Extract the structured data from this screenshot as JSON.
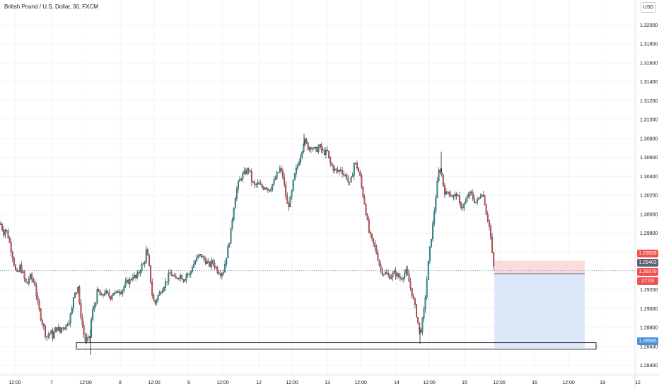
{
  "header": {
    "title": "British Pound / U.S. Dollar, 30, FXCM",
    "currency": "USD"
  },
  "price_tags": {
    "target_price": "1.29509",
    "last_price": "1.29403",
    "entry_price": "1.29370",
    "countdown": "27:03",
    "stop_price": "1.28585"
  },
  "colors": {
    "up": "#26a69a",
    "down": "#ef5350",
    "last": "#5b6170",
    "stop": "#4a90d9",
    "profit_zone": "#f8d7d7",
    "loss_zone": "#d9e6fa"
  },
  "chart_data": {
    "type": "candlestick",
    "title": "British Pound / U.S. Dollar, 30, FXCM",
    "ylim": [
      1.283,
      1.3225
    ],
    "y_ticks": [
      "1.32000",
      "1.31800",
      "1.31600",
      "1.31400",
      "1.31200",
      "1.31000",
      "1.30800",
      "1.30600",
      "1.30400",
      "1.30200",
      "1.30000",
      "1.29800",
      "1.29600",
      "1.29400",
      "1.29200",
      "1.29000",
      "1.28800",
      "1.28600",
      "1.28400"
    ],
    "x_ticks": [
      "12:00",
      "7",
      "12:00",
      "8",
      "12:00",
      "9",
      "12:00",
      "12",
      "12:00",
      "13",
      "12:00",
      "14",
      "12:00",
      "15",
      "12:00",
      "16",
      "12:00",
      "19",
      "12"
    ],
    "price_path": [
      [
        0,
        1.299
      ],
      [
        2,
        1.2988
      ],
      [
        5,
        1.298
      ],
      [
        8,
        1.2985
      ],
      [
        12,
        1.2975
      ],
      [
        15,
        1.2965
      ],
      [
        18,
        1.2955
      ],
      [
        22,
        1.294
      ],
      [
        25,
        1.2935
      ],
      [
        28,
        1.2945
      ],
      [
        32,
        1.2938
      ],
      [
        35,
        1.293
      ],
      [
        38,
        1.2925
      ],
      [
        42,
        1.2935
      ],
      [
        46,
        1.293
      ],
      [
        50,
        1.2925
      ],
      [
        52,
        1.291
      ],
      [
        55,
        1.29
      ],
      [
        58,
        1.289
      ],
      [
        62,
        1.288
      ],
      [
        65,
        1.287
      ],
      [
        68,
        1.2872
      ],
      [
        72,
        1.2875
      ],
      [
        75,
        1.287
      ],
      [
        78,
        1.2878
      ],
      [
        82,
        1.288
      ],
      [
        85,
        1.2875
      ],
      [
        88,
        1.2882
      ],
      [
        92,
        1.288
      ],
      [
        95,
        1.2885
      ],
      [
        98,
        1.2888
      ],
      [
        102,
        1.29
      ],
      [
        105,
        1.292
      ],
      [
        108,
        1.2918
      ],
      [
        110,
        1.2925
      ],
      [
        112,
        1.2905
      ],
      [
        115,
        1.289
      ],
      [
        118,
        1.2875
      ],
      [
        121,
        1.2865
      ],
      [
        124,
        1.287
      ],
      [
        126,
        1.2862
      ],
      [
        128,
        1.288
      ],
      [
        130,
        1.2895
      ],
      [
        132,
        1.29
      ],
      [
        134,
        1.2905
      ],
      [
        136,
        1.291
      ],
      [
        138,
        1.292
      ],
      [
        141,
        1.2915
      ],
      [
        144,
        1.2912
      ],
      [
        148,
        1.2918
      ],
      [
        152,
        1.2915
      ],
      [
        156,
        1.2912
      ],
      [
        160,
        1.2918
      ],
      [
        164,
        1.2915
      ],
      [
        168,
        1.292
      ],
      [
        172,
        1.2918
      ],
      [
        176,
        1.2925
      ],
      [
        180,
        1.2928
      ],
      [
        184,
        1.293
      ],
      [
        188,
        1.2935
      ],
      [
        192,
        1.2932
      ],
      [
        196,
        1.2938
      ],
      [
        200,
        1.2945
      ],
      [
        204,
        1.2948
      ],
      [
        207,
        1.2962
      ],
      [
        210,
        1.295
      ],
      [
        213,
        1.293
      ],
      [
        216,
        1.291
      ],
      [
        219,
        1.2905
      ],
      [
        222,
        1.2912
      ],
      [
        225,
        1.2915
      ],
      [
        228,
        1.292
      ],
      [
        232,
        1.2925
      ],
      [
        236,
        1.293
      ],
      [
        240,
        1.2938
      ],
      [
        244,
        1.2935
      ],
      [
        248,
        1.293
      ],
      [
        252,
        1.2935
      ],
      [
        256,
        1.2935
      ],
      [
        260,
        1.293
      ],
      [
        264,
        1.2938
      ],
      [
        268,
        1.2935
      ],
      [
        272,
        1.2945
      ],
      [
        276,
        1.295
      ],
      [
        280,
        1.2955
      ],
      [
        284,
        1.2957
      ],
      [
        288,
        1.2952
      ],
      [
        292,
        1.295
      ],
      [
        296,
        1.2945
      ],
      [
        300,
        1.295
      ],
      [
        304,
        1.2945
      ],
      [
        308,
        1.294
      ],
      [
        312,
        1.2938
      ],
      [
        316,
        1.294
      ],
      [
        320,
        1.2955
      ],
      [
        324,
        1.297
      ],
      [
        327,
        1.2985
      ],
      [
        330,
        1.3005
      ],
      [
        333,
        1.302
      ],
      [
        336,
        1.303
      ],
      [
        340,
        1.3038
      ],
      [
        344,
        1.3042
      ],
      [
        348,
        1.3045
      ],
      [
        352,
        1.3048
      ],
      [
        356,
        1.3035
      ],
      [
        360,
        1.303
      ],
      [
        364,
        1.3032
      ],
      [
        368,
        1.303
      ],
      [
        372,
        1.3028
      ],
      [
        376,
        1.303
      ],
      [
        380,
        1.3025
      ],
      [
        384,
        1.303
      ],
      [
        388,
        1.3035
      ],
      [
        392,
        1.3042
      ],
      [
        396,
        1.3048
      ],
      [
        400,
        1.304
      ],
      [
        403,
        1.3025
      ],
      [
        406,
        1.301
      ],
      [
        409,
        1.301
      ],
      [
        412,
        1.302
      ],
      [
        415,
        1.3035
      ],
      [
        418,
        1.3045
      ],
      [
        421,
        1.3052
      ],
      [
        424,
        1.306
      ],
      [
        427,
        1.3068
      ],
      [
        430,
        1.3078
      ],
      [
        433,
        1.3075
      ],
      [
        436,
        1.307
      ],
      [
        440,
        1.3072
      ],
      [
        444,
        1.3068
      ],
      [
        448,
        1.3068
      ],
      [
        452,
        1.3072
      ],
      [
        456,
        1.3066
      ],
      [
        460,
        1.3065
      ],
      [
        463,
        1.3066
      ],
      [
        466,
        1.3055
      ],
      [
        470,
        1.305
      ],
      [
        474,
        1.3046
      ],
      [
        478,
        1.3045
      ],
      [
        482,
        1.3048
      ],
      [
        486,
        1.3042
      ],
      [
        490,
        1.304
      ],
      [
        494,
        1.303
      ],
      [
        498,
        1.304
      ],
      [
        501,
        1.3055
      ],
      [
        505,
        1.305
      ],
      [
        509,
        1.304
      ],
      [
        512,
        1.3025
      ],
      [
        516,
        1.301
      ],
      [
        519,
        1.2995
      ],
      [
        522,
        1.298
      ],
      [
        526,
        1.2972
      ],
      [
        530,
        1.2965
      ],
      [
        534,
        1.2955
      ],
      [
        538,
        1.2942
      ],
      [
        542,
        1.2938
      ],
      [
        546,
        1.2937
      ],
      [
        550,
        1.2934
      ],
      [
        554,
        1.2935
      ],
      [
        558,
        1.2938
      ],
      [
        562,
        1.2935
      ],
      [
        566,
        1.2932
      ],
      [
        570,
        1.2935
      ],
      [
        574,
        1.294
      ],
      [
        578,
        1.293
      ],
      [
        582,
        1.2918
      ],
      [
        586,
        1.2905
      ],
      [
        590,
        1.289
      ],
      [
        594,
        1.2872
      ],
      [
        597,
        1.2885
      ],
      [
        600,
        1.29
      ],
      [
        603,
        1.2925
      ],
      [
        606,
        1.295
      ],
      [
        609,
        1.297
      ],
      [
        612,
        1.2988
      ],
      [
        615,
        1.301
      ],
      [
        618,
        1.303
      ],
      [
        621,
        1.3048
      ],
      [
        624,
        1.3045
      ],
      [
        627,
        1.303
      ],
      [
        630,
        1.302
      ],
      [
        634,
        1.3025
      ],
      [
        638,
        1.302
      ],
      [
        642,
        1.3018
      ],
      [
        646,
        1.3022
      ],
      [
        650,
        1.301
      ],
      [
        654,
        1.3008
      ],
      [
        658,
        1.3012
      ],
      [
        662,
        1.302
      ],
      [
        666,
        1.3022
      ],
      [
        670,
        1.3015
      ],
      [
        674,
        1.3012
      ],
      [
        678,
        1.3018
      ],
      [
        682,
        1.3024
      ],
      [
        685,
        1.3015
      ],
      [
        688,
        1.3
      ],
      [
        691,
        1.2992
      ],
      [
        694,
        1.2975
      ],
      [
        697,
        1.295
      ],
      [
        699,
        1.294
      ]
    ],
    "levels": {
      "last_price": 1.29403,
      "target": 1.29509,
      "entry": 1.2937,
      "stop": 1.28585
    },
    "support_zone": [
      1.28572,
      1.2864
    ],
    "grid": true
  }
}
